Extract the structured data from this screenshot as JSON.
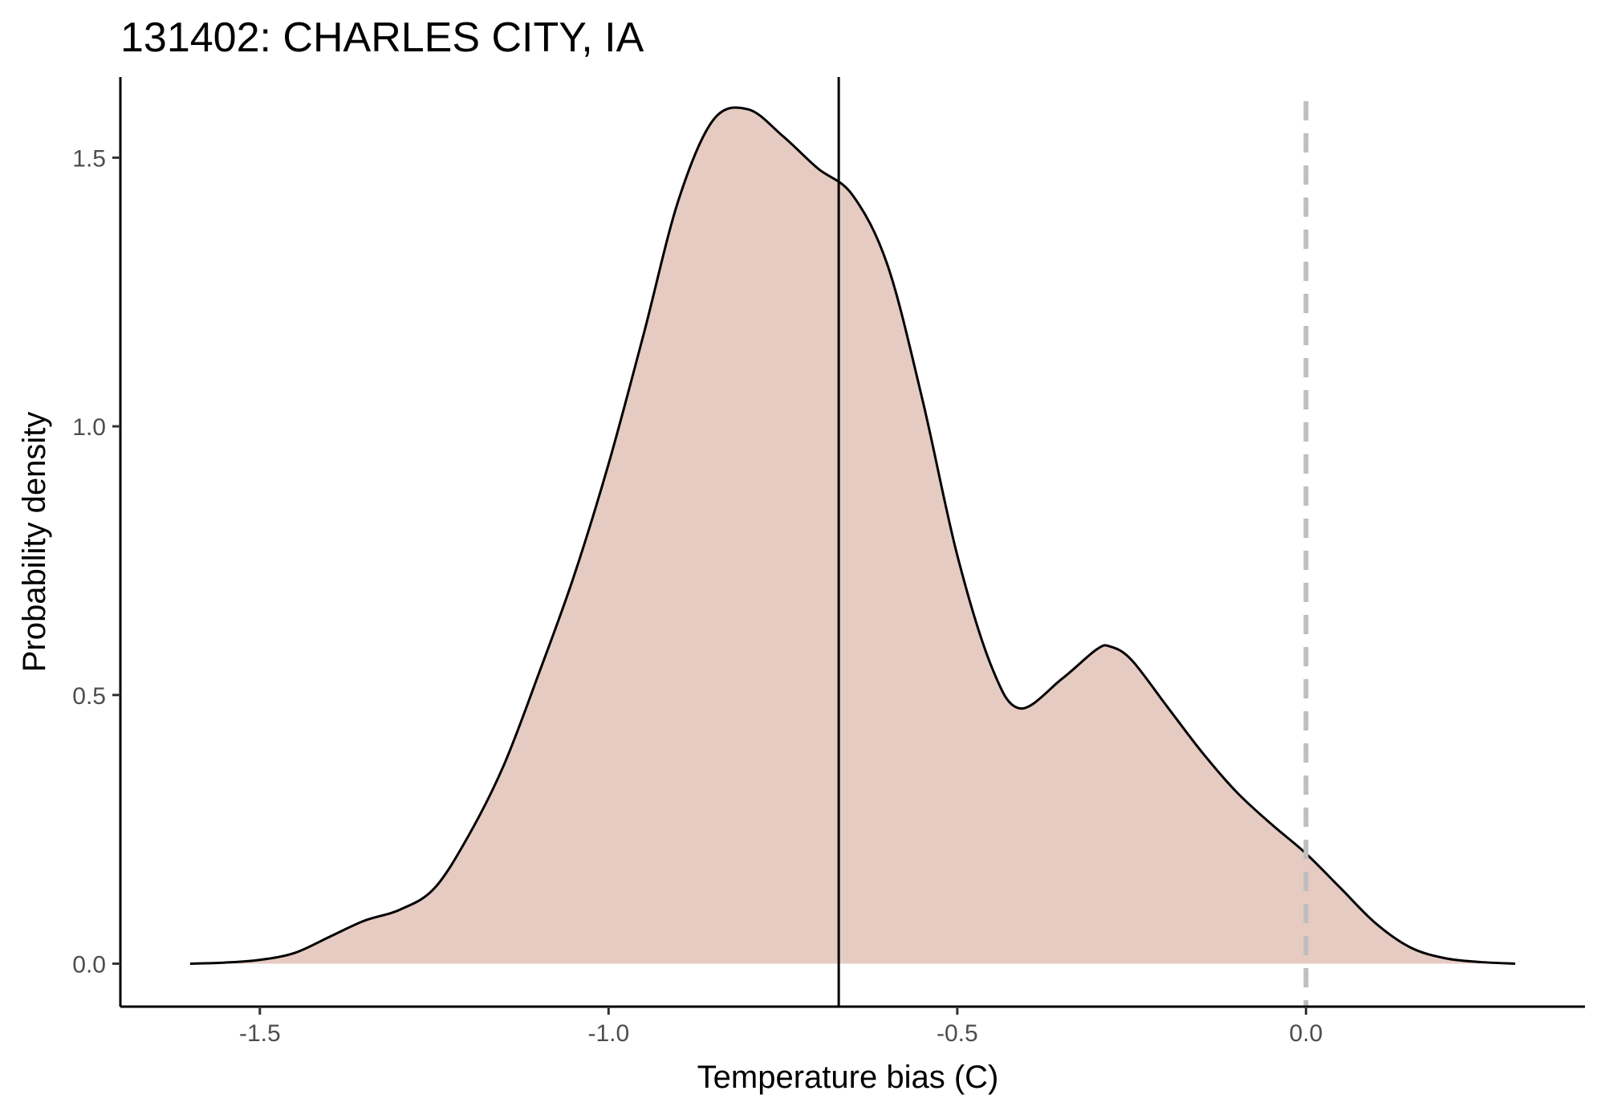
{
  "chart_data": {
    "type": "area",
    "title": "131402: CHARLES CITY, IA",
    "xlabel": "Temperature bias (C)",
    "ylabel": "Probability density",
    "xlim": [
      -1.7,
      0.4
    ],
    "ylim": [
      -0.08,
      1.65
    ],
    "x_ticks": [
      -1.5,
      -1.0,
      -0.5,
      0.0
    ],
    "x_tick_labels": [
      "-1.5",
      "-1.0",
      "-0.5",
      "0.0"
    ],
    "y_ticks": [
      0.0,
      0.5,
      1.0,
      1.5
    ],
    "y_tick_labels": [
      "0.0",
      "0.5",
      "1.0",
      "1.5"
    ],
    "grid": false,
    "fill_color": "#e6cbc2",
    "line_color": "#000000",
    "reference_lines": [
      {
        "x": -0.67,
        "style": "solid",
        "color": "#000000"
      },
      {
        "x": 0.0,
        "style": "dashed",
        "color": "#bebebe"
      }
    ],
    "series": [
      {
        "x": [
          -1.6,
          -1.55,
          -1.5,
          -1.45,
          -1.4,
          -1.35,
          -1.3,
          -1.25,
          -1.2,
          -1.15,
          -1.1,
          -1.05,
          -1.0,
          -0.95,
          -0.9,
          -0.85,
          -0.8,
          -0.75,
          -0.7,
          -0.65,
          -0.6,
          -0.55,
          -0.5,
          -0.45,
          -0.41,
          -0.35,
          -0.3,
          -0.28,
          -0.25,
          -0.2,
          -0.15,
          -0.1,
          -0.05,
          0.0,
          0.05,
          0.1,
          0.15,
          0.2,
          0.25,
          0.3
        ],
        "y": [
          0.0,
          0.002,
          0.007,
          0.02,
          0.05,
          0.08,
          0.1,
          0.14,
          0.24,
          0.37,
          0.54,
          0.72,
          0.93,
          1.17,
          1.42,
          1.57,
          1.59,
          1.54,
          1.48,
          1.43,
          1.3,
          1.05,
          0.76,
          0.55,
          0.475,
          0.53,
          0.585,
          0.59,
          0.565,
          0.48,
          0.395,
          0.32,
          0.26,
          0.205,
          0.14,
          0.075,
          0.03,
          0.01,
          0.003,
          0.0
        ]
      }
    ]
  }
}
